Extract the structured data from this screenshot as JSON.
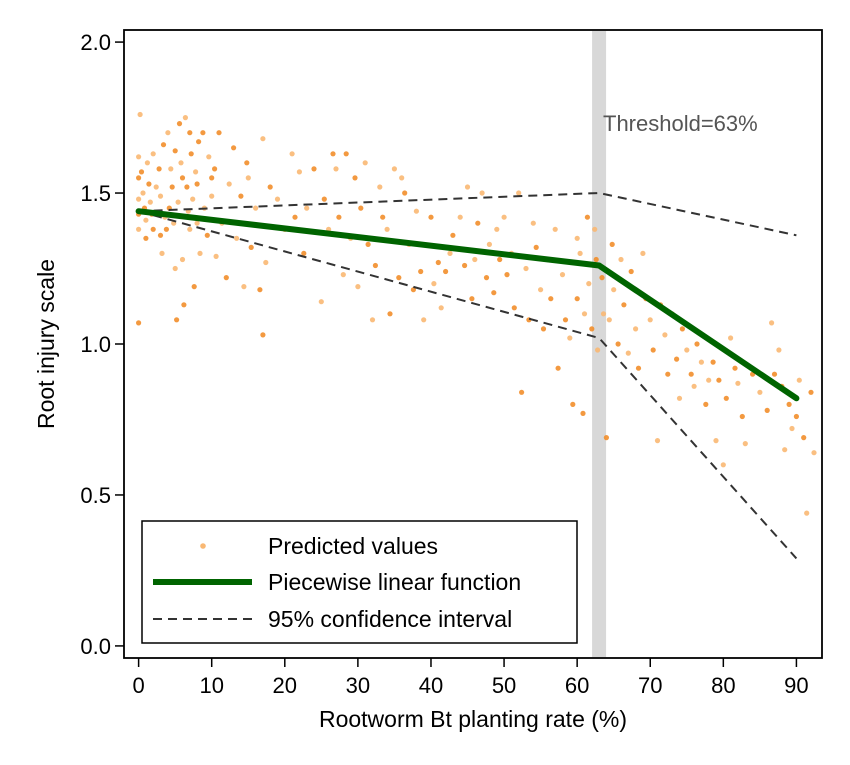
{
  "chart_data": {
    "type": "scatter",
    "xlabel": "Rootworm Bt planting rate (%)",
    "ylabel": "Root injury scale",
    "xlim": [
      -2,
      93.5
    ],
    "ylim": [
      -0.04,
      2.04
    ],
    "x_ticks": [
      0,
      10,
      20,
      30,
      40,
      50,
      60,
      70,
      80,
      90
    ],
    "y_ticks": [
      0.0,
      0.5,
      1.0,
      1.5,
      2.0
    ],
    "x_tick_labels": [
      "0",
      "10",
      "20",
      "30",
      "40",
      "50",
      "60",
      "70",
      "80",
      "90"
    ],
    "y_tick_labels": [
      "0.0",
      "0.5",
      "1.0",
      "1.5",
      "2.0"
    ],
    "grid": false,
    "legend_position": "bottom-left",
    "threshold": {
      "x": 63,
      "label": "Threshold=63%",
      "color": "#d8d8d8"
    },
    "series": [
      {
        "name": "Predicted values",
        "type": "scatter",
        "color": "#f28e2b",
        "points": [
          [
            0,
            1.62
          ],
          [
            0,
            1.55
          ],
          [
            0,
            1.48
          ],
          [
            0,
            1.43
          ],
          [
            0,
            1.38
          ],
          [
            0,
            1.07
          ],
          [
            0.2,
            1.76
          ],
          [
            0.4,
            1.57
          ],
          [
            0.6,
            1.5
          ],
          [
            0.8,
            1.45
          ],
          [
            1,
            1.41
          ],
          [
            1,
            1.35
          ],
          [
            1.2,
            1.6
          ],
          [
            1.4,
            1.53
          ],
          [
            1.6,
            1.47
          ],
          [
            1.8,
            1.43
          ],
          [
            2,
            1.63
          ],
          [
            2,
            1.38
          ],
          [
            2.4,
            1.52
          ],
          [
            2.8,
            1.58
          ],
          [
            3,
            1.49
          ],
          [
            3,
            1.36
          ],
          [
            3.2,
            1.3
          ],
          [
            3.4,
            1.66
          ],
          [
            3.6,
            1.42
          ],
          [
            3.8,
            1.38
          ],
          [
            4,
            1.7
          ],
          [
            4.2,
            1.45
          ],
          [
            4.4,
            1.58
          ],
          [
            4.6,
            1.52
          ],
          [
            4.8,
            1.4
          ],
          [
            5,
            1.64
          ],
          [
            5,
            1.25
          ],
          [
            5.2,
            1.08
          ],
          [
            5.4,
            1.47
          ],
          [
            5.6,
            1.73
          ],
          [
            5.8,
            1.6
          ],
          [
            6,
            1.55
          ],
          [
            6,
            1.28
          ],
          [
            6.2,
            1.13
          ],
          [
            6.4,
            1.75
          ],
          [
            6.6,
            1.52
          ],
          [
            6.8,
            1.44
          ],
          [
            7,
            1.7
          ],
          [
            7,
            1.38
          ],
          [
            7.2,
            1.63
          ],
          [
            7.4,
            1.48
          ],
          [
            7.6,
            1.19
          ],
          [
            7.8,
            1.57
          ],
          [
            8,
            1.53
          ],
          [
            8,
            1.4
          ],
          [
            8.2,
            1.67
          ],
          [
            8.4,
            1.3
          ],
          [
            8.8,
            1.7
          ],
          [
            9,
            1.45
          ],
          [
            9.4,
            1.36
          ],
          [
            9.6,
            1.62
          ],
          [
            10,
            1.55
          ],
          [
            10,
            1.49
          ],
          [
            10.4,
            1.58
          ],
          [
            10.6,
            1.29
          ],
          [
            11,
            1.7
          ],
          [
            11.4,
            1.4
          ],
          [
            12,
            1.22
          ],
          [
            12.4,
            1.53
          ],
          [
            13,
            1.65
          ],
          [
            13.4,
            1.35
          ],
          [
            14,
            1.49
          ],
          [
            14.4,
            1.19
          ],
          [
            14.8,
            1.6
          ],
          [
            15,
            1.55
          ],
          [
            15.4,
            1.32
          ],
          [
            16,
            1.45
          ],
          [
            16.6,
            1.18
          ],
          [
            17,
            1.68
          ],
          [
            17,
            1.03
          ],
          [
            17.4,
            1.27
          ],
          [
            18,
            1.52
          ],
          [
            19,
            1.48
          ],
          [
            20,
            1.38
          ],
          [
            21,
            1.63
          ],
          [
            21.4,
            1.42
          ],
          [
            22,
            1.57
          ],
          [
            22.6,
            1.3
          ],
          [
            23,
            1.45
          ],
          [
            24,
            1.58
          ],
          [
            25,
            1.14
          ],
          [
            25.4,
            1.48
          ],
          [
            26,
            1.38
          ],
          [
            26.6,
            1.63
          ],
          [
            27,
            1.58
          ],
          [
            27.4,
            1.42
          ],
          [
            28,
            1.23
          ],
          [
            28.4,
            1.63
          ],
          [
            29,
            1.35
          ],
          [
            29.6,
            1.55
          ],
          [
            30,
            1.19
          ],
          [
            30.4,
            1.45
          ],
          [
            31,
            1.6
          ],
          [
            31.4,
            1.33
          ],
          [
            32,
            1.08
          ],
          [
            32.4,
            1.26
          ],
          [
            33,
            1.52
          ],
          [
            33.4,
            1.42
          ],
          [
            34,
            1.38
          ],
          [
            34.4,
            1.1
          ],
          [
            35,
            1.58
          ],
          [
            35.6,
            1.22
          ],
          [
            36,
            1.55
          ],
          [
            36.4,
            1.5
          ],
          [
            37,
            1.33
          ],
          [
            37.6,
            1.18
          ],
          [
            38,
            1.44
          ],
          [
            38.6,
            1.24
          ],
          [
            39,
            1.08
          ],
          [
            40,
            1.42
          ],
          [
            40.4,
            1.2
          ],
          [
            41,
            1.27
          ],
          [
            41.4,
            1.12
          ],
          [
            42,
            1.24
          ],
          [
            42.6,
            1.3
          ],
          [
            43,
            1.36
          ],
          [
            44,
            1.42
          ],
          [
            44.6,
            1.26
          ],
          [
            45,
            1.52
          ],
          [
            45.6,
            1.15
          ],
          [
            46,
            1.28
          ],
          [
            46.4,
            1.4
          ],
          [
            47,
            1.5
          ],
          [
            47.6,
            1.22
          ],
          [
            48,
            1.33
          ],
          [
            48.6,
            1.17
          ],
          [
            49,
            1.38
          ],
          [
            49.4,
            1.28
          ],
          [
            50,
            1.42
          ],
          [
            50.4,
            1.23
          ],
          [
            51,
            1.3
          ],
          [
            51.4,
            1.12
          ],
          [
            52,
            1.5
          ],
          [
            52.4,
            0.84
          ],
          [
            53,
            1.25
          ],
          [
            53.4,
            1.08
          ],
          [
            54,
            1.4
          ],
          [
            54.4,
            1.32
          ],
          [
            55,
            1.18
          ],
          [
            55.4,
            1.05
          ],
          [
            56,
            1.28
          ],
          [
            56.4,
            1.15
          ],
          [
            57,
            1.38
          ],
          [
            57.4,
            0.92
          ],
          [
            58,
            1.23
          ],
          [
            58.4,
            1.08
          ],
          [
            59,
            1.02
          ],
          [
            59.4,
            0.8
          ],
          [
            60,
            1.35
          ],
          [
            60,
            1.15
          ],
          [
            60.4,
            1.3
          ],
          [
            60.8,
            0.77
          ],
          [
            61,
            1.1
          ],
          [
            61.4,
            1.42
          ],
          [
            61.6,
            1.2
          ],
          [
            62,
            1.05
          ],
          [
            62.4,
            1.38
          ],
          [
            62.6,
            1.28
          ],
          [
            62.8,
            0.98
          ],
          [
            63.4,
            1.22
          ],
          [
            63.6,
            1.1
          ],
          [
            64,
            0.69
          ],
          [
            64.4,
            1.08
          ],
          [
            64.8,
            1.33
          ],
          [
            65,
            1.18
          ],
          [
            65.6,
            1.0
          ],
          [
            66,
            1.28
          ],
          [
            66.4,
            1.13
          ],
          [
            67,
            0.97
          ],
          [
            67.4,
            1.24
          ],
          [
            68,
            1.05
          ],
          [
            68.4,
            0.92
          ],
          [
            69,
            1.3
          ],
          [
            69.4,
            1.15
          ],
          [
            70,
            1.08
          ],
          [
            70.4,
            0.98
          ],
          [
            71,
            0.68
          ],
          [
            71.4,
            1.13
          ],
          [
            72,
            1.03
          ],
          [
            72.4,
            0.9
          ],
          [
            73,
            1.1
          ],
          [
            73.6,
            0.95
          ],
          [
            74,
            0.82
          ],
          [
            74.4,
            1.05
          ],
          [
            75,
            0.98
          ],
          [
            75.6,
            0.9
          ],
          [
            76,
            0.86
          ],
          [
            76.4,
            1.0
          ],
          [
            77,
            0.94
          ],
          [
            77.6,
            0.8
          ],
          [
            78,
            0.88
          ],
          [
            78.6,
            0.94
          ],
          [
            79,
            0.68
          ],
          [
            79.4,
            0.88
          ],
          [
            80,
            0.6
          ],
          [
            80.4,
            0.82
          ],
          [
            81,
            1.02
          ],
          [
            81.6,
            0.92
          ],
          [
            82,
            0.87
          ],
          [
            82.6,
            0.76
          ],
          [
            83,
            0.67
          ],
          [
            84,
            0.9
          ],
          [
            85,
            0.84
          ],
          [
            86,
            0.78
          ],
          [
            86.6,
            1.07
          ],
          [
            87,
            0.9
          ],
          [
            87.6,
            0.98
          ],
          [
            88,
            0.86
          ],
          [
            88.4,
            0.65
          ],
          [
            89,
            0.8
          ],
          [
            89.4,
            0.72
          ],
          [
            90,
            0.76
          ],
          [
            90.4,
            0.88
          ],
          [
            91,
            0.69
          ],
          [
            91.4,
            0.44
          ],
          [
            92,
            0.84
          ],
          [
            92.4,
            0.64
          ]
        ]
      },
      {
        "name": "Piecewise linear function",
        "type": "line",
        "color": "#006400",
        "points": [
          [
            0,
            1.44
          ],
          [
            63,
            1.26
          ],
          [
            90,
            0.82
          ]
        ]
      },
      {
        "name": "95% confidence interval",
        "type": "line",
        "color": "#333333",
        "dashed": true,
        "upper": [
          [
            0,
            1.44
          ],
          [
            63,
            1.5
          ],
          [
            90,
            1.36
          ]
        ],
        "lower": [
          [
            0,
            1.44
          ],
          [
            63,
            1.02
          ],
          [
            90,
            0.29
          ]
        ]
      }
    ]
  }
}
